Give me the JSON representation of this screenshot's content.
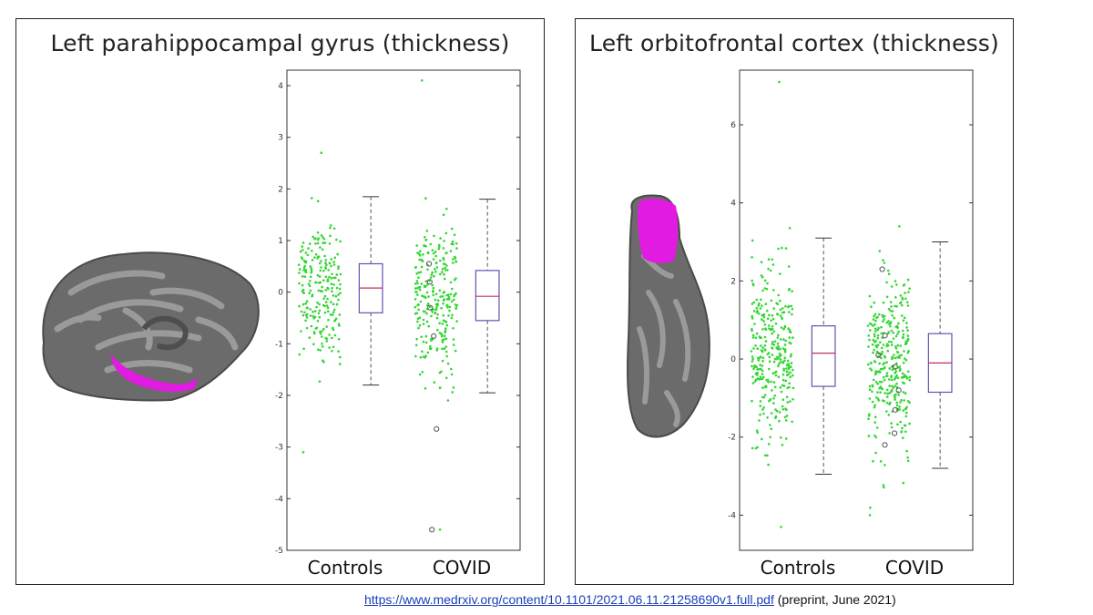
{
  "footer": {
    "url": "https://www.medrxiv.org/content/10.1101/2021.06.11.21258690v1.full.pdf",
    "note": "(preprint, June 2021)"
  },
  "chart_data": [
    {
      "type": "box",
      "title": "Left parahippocampal gyrus (thickness)",
      "categories": [
        "Controls",
        "COVID"
      ],
      "ylim": [
        -5,
        4.3
      ],
      "yticks": [
        -5,
        -4,
        -3,
        -2,
        -1,
        0,
        1,
        2,
        3,
        4
      ],
      "colors": {
        "points": "#33d633",
        "box": "#6a4fb0",
        "median": "#c0306a",
        "highlight": "#e11be1"
      },
      "series": [
        {
          "name": "Controls",
          "q1": -0.4,
          "median": 0.08,
          "q3": 0.55,
          "whisker_low": -1.8,
          "whisker_high": 1.85,
          "n_points": 230,
          "point_min": -3.1,
          "point_max": 2.7,
          "outliers": []
        },
        {
          "name": "COVID",
          "q1": -0.55,
          "median": -0.08,
          "q3": 0.42,
          "whisker_low": -1.95,
          "whisker_high": 1.8,
          "n_points": 260,
          "point_min": -4.6,
          "point_max": 4.1,
          "outliers": [
            -2.65,
            -4.6,
            0.55,
            -0.3,
            -0.85,
            0.2
          ]
        }
      ]
    },
    {
      "type": "box",
      "title": "Left orbitofrontal cortex (thickness)",
      "categories": [
        "Controls",
        "COVID"
      ],
      "ylim": [
        -4.9,
        7.4
      ],
      "yticks": [
        -4,
        -2,
        0,
        2,
        4,
        6
      ],
      "colors": {
        "points": "#33d633",
        "box": "#6a4fb0",
        "median": "#c0306a",
        "highlight": "#e11be1"
      },
      "series": [
        {
          "name": "Controls",
          "q1": -0.7,
          "median": 0.15,
          "q3": 0.85,
          "whisker_low": -2.95,
          "whisker_high": 3.1,
          "n_points": 320,
          "point_min": -4.3,
          "point_max": 7.1,
          "outliers": []
        },
        {
          "name": "COVID",
          "q1": -0.85,
          "median": -0.1,
          "q3": 0.65,
          "whisker_low": -2.8,
          "whisker_high": 3.0,
          "n_points": 330,
          "point_min": -4.0,
          "point_max": 3.4,
          "outliers": [
            2.3,
            0.6,
            -0.2,
            -0.8,
            -1.3,
            -1.9,
            0.1,
            -2.2
          ]
        }
      ]
    }
  ]
}
